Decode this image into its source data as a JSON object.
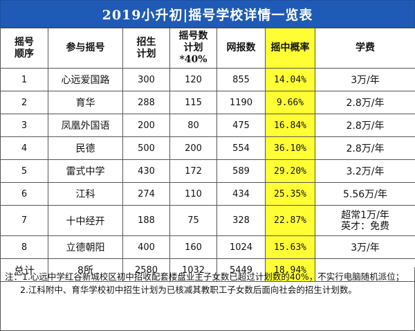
{
  "title": "2019小升初|摇号学校详情一览表",
  "columns": {
    "order": [
      "摇号",
      "顺序"
    ],
    "school": "参与摇号",
    "plan": [
      "招生",
      "计划"
    ],
    "lottery_plan": [
      "摇号数",
      "计划*40%"
    ],
    "applicants": "网报数",
    "rate": "摇中概率",
    "fee": "学费"
  },
  "rows": [
    {
      "order": "1",
      "school": "心远爱国路",
      "plan": "300",
      "lottery_plan": "120",
      "applicants": "855",
      "rate": "14.04%",
      "fee": "3万/年"
    },
    {
      "order": "2",
      "school": "育华",
      "plan": "288",
      "lottery_plan": "115",
      "applicants": "1190",
      "rate": "9.66%",
      "fee": "2.8万/年"
    },
    {
      "order": "3",
      "school": "凤凰外国语",
      "plan": "200",
      "lottery_plan": "80",
      "applicants": "475",
      "rate": "16.84%",
      "fee": "2.8万/年"
    },
    {
      "order": "4",
      "school": "民德",
      "plan": "500",
      "lottery_plan": "200",
      "applicants": "554",
      "rate": "36.10%",
      "fee": "2.8万/年"
    },
    {
      "order": "5",
      "school": "雷式中学",
      "plan": "430",
      "lottery_plan": "172",
      "applicants": "589",
      "rate": "29.20%",
      "fee": "3.2万/年"
    },
    {
      "order": "6",
      "school": "江科",
      "plan": "274",
      "lottery_plan": "110",
      "applicants": "434",
      "rate": "25.35%",
      "fee": "5.56万/年"
    },
    {
      "order": "7",
      "school": "十中经开",
      "plan": "188",
      "lottery_plan": "75",
      "applicants": "328",
      "rate": "22.87%",
      "fee_lines": [
        "超常1万/年",
        "英才：免费"
      ]
    },
    {
      "order": "8",
      "school": "立德朝阳",
      "plan": "400",
      "lottery_plan": "160",
      "applicants": "1024",
      "rate": "15.63%",
      "fee": "3万/年"
    }
  ],
  "total": {
    "label": "总计",
    "school": "8所",
    "plan": "2580",
    "lottery_plan": "1032",
    "applicants": "5449",
    "rate": "18.94%",
    "fee": ""
  },
  "notes": {
    "note1": "注：1.心远中学红谷新城校区初中招收配套楼盘业主子女数已超过计划数的40%，不实行电脑随机派位；",
    "note2": "2.江科附中、育华学校初中招生计划为已核减其教职工子女数后面向社会的招生计划数。"
  },
  "colors": {
    "title_bg": "#1f5bb6",
    "rate_highlight": "#ffff33"
  }
}
